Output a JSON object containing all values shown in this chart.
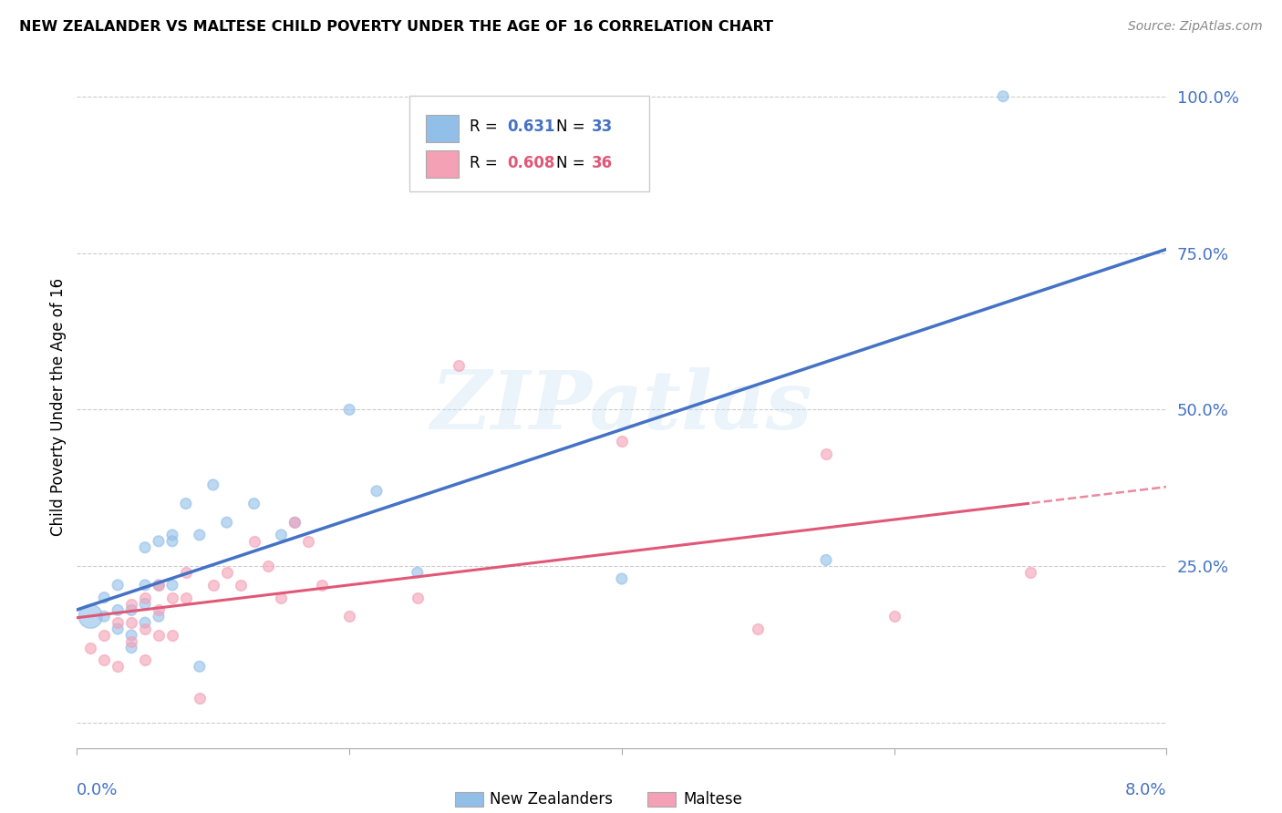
{
  "title": "NEW ZEALANDER VS MALTESE CHILD POVERTY UNDER THE AGE OF 16 CORRELATION CHART",
  "source": "Source: ZipAtlas.com",
  "ylabel": "Child Poverty Under the Age of 16",
  "x_min": 0.0,
  "x_max": 0.08,
  "y_min": -0.04,
  "y_max": 1.05,
  "nz_R": 0.631,
  "nz_N": 33,
  "mt_R": 0.608,
  "mt_N": 36,
  "nz_color": "#92bfe8",
  "mt_color": "#f4a0b5",
  "nz_line_color": "#4472c4",
  "mt_line_color": "#e05878",
  "legend_nz_label": "New Zealanders",
  "legend_mt_label": "Maltese",
  "nz_scatter_x": [
    0.001,
    0.002,
    0.002,
    0.003,
    0.003,
    0.003,
    0.004,
    0.004,
    0.004,
    0.005,
    0.005,
    0.005,
    0.005,
    0.006,
    0.006,
    0.006,
    0.007,
    0.007,
    0.007,
    0.008,
    0.009,
    0.009,
    0.01,
    0.011,
    0.013,
    0.015,
    0.016,
    0.02,
    0.022,
    0.025,
    0.04,
    0.055,
    0.068
  ],
  "nz_scatter_y": [
    0.17,
    0.17,
    0.2,
    0.15,
    0.18,
    0.22,
    0.14,
    0.18,
    0.12,
    0.16,
    0.19,
    0.22,
    0.28,
    0.17,
    0.22,
    0.29,
    0.22,
    0.29,
    0.3,
    0.35,
    0.09,
    0.3,
    0.38,
    0.32,
    0.35,
    0.3,
    0.32,
    0.5,
    0.37,
    0.24,
    0.23,
    0.26,
    1.0
  ],
  "nz_sizes": [
    80,
    80,
    80,
    80,
    80,
    80,
    80,
    80,
    80,
    80,
    80,
    80,
    80,
    80,
    80,
    80,
    80,
    80,
    80,
    80,
    80,
    80,
    80,
    80,
    80,
    80,
    80,
    80,
    80,
    80,
    80,
    80,
    80
  ],
  "nz_large_idx": 0,
  "nz_large_size": 350,
  "mt_scatter_x": [
    0.001,
    0.002,
    0.002,
    0.003,
    0.003,
    0.004,
    0.004,
    0.004,
    0.005,
    0.005,
    0.005,
    0.006,
    0.006,
    0.006,
    0.007,
    0.007,
    0.008,
    0.008,
    0.009,
    0.01,
    0.011,
    0.012,
    0.013,
    0.014,
    0.015,
    0.016,
    0.017,
    0.018,
    0.02,
    0.025,
    0.028,
    0.04,
    0.05,
    0.055,
    0.06,
    0.07
  ],
  "mt_scatter_y": [
    0.12,
    0.1,
    0.14,
    0.09,
    0.16,
    0.13,
    0.16,
    0.19,
    0.1,
    0.15,
    0.2,
    0.14,
    0.18,
    0.22,
    0.14,
    0.2,
    0.2,
    0.24,
    0.04,
    0.22,
    0.24,
    0.22,
    0.29,
    0.25,
    0.2,
    0.32,
    0.29,
    0.22,
    0.17,
    0.2,
    0.57,
    0.45,
    0.15,
    0.43,
    0.17,
    0.24
  ],
  "y_ticks": [
    0.0,
    0.25,
    0.5,
    0.75,
    1.0
  ],
  "y_tick_labels": [
    "",
    "25.0%",
    "50.0%",
    "75.0%",
    "100.0%"
  ],
  "x_ticks": [
    0.0,
    0.02,
    0.04,
    0.06,
    0.08
  ],
  "tick_color": "#4472c4",
  "grid_color": "#cccccc",
  "background_color": "#ffffff"
}
